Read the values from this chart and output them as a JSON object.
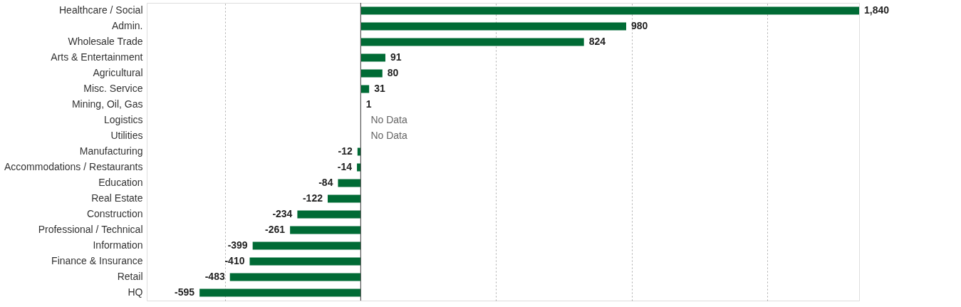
{
  "chart_data": {
    "type": "bar",
    "orientation": "horizontal",
    "categories": [
      "Healthcare / Social",
      "Admin.",
      "Wholesale Trade",
      "Arts & Entertainment",
      "Agricultural",
      "Misc. Service",
      "Mining, Oil, Gas",
      "Logistics",
      "Utilities",
      "Manufacturing",
      "Accommodations / Restaurants",
      "Education",
      "Real Estate",
      "Construction",
      "Professional / Technical",
      "Information",
      "Finance & Insurance",
      "Retail",
      "HQ"
    ],
    "values": [
      1840,
      980,
      824,
      91,
      80,
      31,
      1,
      null,
      null,
      -12,
      -14,
      -84,
      -122,
      -234,
      -261,
      -399,
      -410,
      -483,
      -595
    ],
    "value_labels": [
      "1,840",
      "980",
      "824",
      "91",
      "80",
      "31",
      "1",
      "No Data",
      "No Data",
      "-12",
      "-14",
      "-84",
      "-122",
      "-234",
      "-261",
      "-399",
      "-410",
      "-483",
      "-595"
    ],
    "color": "#006b35",
    "xlim": [
      -790,
      1840
    ],
    "xticks": [
      {
        "value": -500,
        "label": null
      },
      {
        "value": 500,
        "label": null
      },
      {
        "value": 1000,
        "label": null
      },
      {
        "value": 1500,
        "label": null
      }
    ],
    "grid": "x",
    "tick_labels": "y",
    "ref_lines": [
      {
        "axis": "x",
        "value": 0,
        "label": null,
        "color": "#555555",
        "line_style": "solid"
      }
    ]
  }
}
